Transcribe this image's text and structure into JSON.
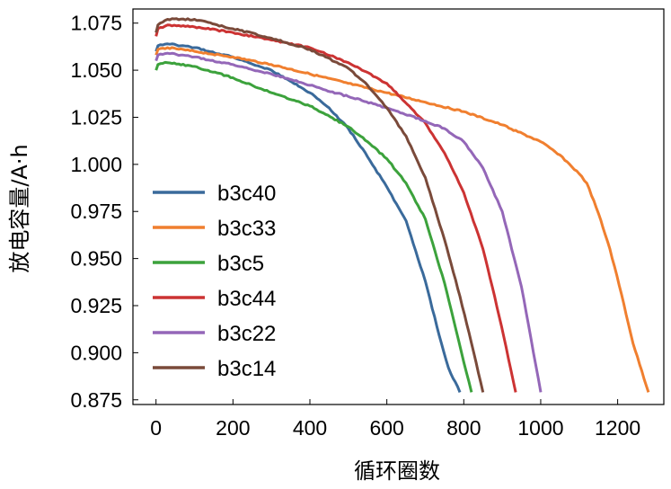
{
  "chart_data": {
    "type": "line",
    "xlabel": "循环圈数",
    "ylabel": "放电容量/A·h",
    "xlim": [
      -60,
      1320
    ],
    "ylim": [
      0.8725,
      1.0825
    ],
    "xticks": [
      0,
      200,
      400,
      600,
      800,
      1000,
      1200
    ],
    "xtick_labels": [
      "0",
      "200",
      "400",
      "600",
      "800",
      "1000",
      "1200"
    ],
    "yticks": [
      0.875,
      0.9,
      0.925,
      0.95,
      0.975,
      1.0,
      1.025,
      1.05,
      1.075
    ],
    "ytick_labels": [
      "0.875",
      "0.900",
      "0.925",
      "0.950",
      "0.975",
      "1.000",
      "1.025",
      "1.050",
      "1.075"
    ],
    "grid": false,
    "legend_position": "lower-left",
    "series": [
      {
        "name": "b3c40",
        "color": "#3a6a9b",
        "x": [
          0,
          5,
          30,
          100,
          200,
          300,
          400,
          450,
          500,
          550,
          600,
          650,
          700,
          730,
          760,
          790
        ],
        "y": [
          1.06,
          1.063,
          1.064,
          1.062,
          1.057,
          1.05,
          1.038,
          1.03,
          1.019,
          1.004,
          0.988,
          0.97,
          0.938,
          0.914,
          0.892,
          0.879
        ]
      },
      {
        "name": "b3c33",
        "color": "#f07f2f",
        "x": [
          0,
          5,
          30,
          100,
          200,
          300,
          400,
          500,
          600,
          700,
          800,
          900,
          1000,
          1050,
          1100,
          1120,
          1150,
          1180,
          1210,
          1240,
          1280
        ],
        "y": [
          1.058,
          1.061,
          1.062,
          1.06,
          1.057,
          1.053,
          1.048,
          1.043,
          1.038,
          1.033,
          1.028,
          1.021,
          1.012,
          1.005,
          0.995,
          0.99,
          0.974,
          0.955,
          0.931,
          0.905,
          0.879
        ]
      },
      {
        "name": "b3c5",
        "color": "#3ca23c",
        "x": [
          0,
          5,
          30,
          100,
          200,
          300,
          400,
          500,
          550,
          600,
          650,
          700,
          750,
          780,
          800,
          820
        ],
        "y": [
          1.05,
          1.053,
          1.054,
          1.052,
          1.046,
          1.038,
          1.031,
          1.02,
          1.012,
          1.003,
          0.99,
          0.971,
          0.937,
          0.912,
          0.895,
          0.879
        ]
      },
      {
        "name": "b3c44",
        "color": "#cc3333",
        "x": [
          0,
          5,
          30,
          100,
          200,
          300,
          400,
          500,
          600,
          700,
          750,
          800,
          850,
          880,
          910,
          935
        ],
        "y": [
          1.068,
          1.072,
          1.074,
          1.073,
          1.07,
          1.066,
          1.062,
          1.054,
          1.043,
          1.022,
          1.006,
          0.985,
          0.955,
          0.93,
          0.903,
          0.879
        ]
      },
      {
        "name": "b3c22",
        "color": "#9467b8",
        "x": [
          0,
          5,
          30,
          100,
          200,
          300,
          400,
          500,
          600,
          700,
          750,
          800,
          850,
          900,
          950,
          1000
        ],
        "y": [
          1.055,
          1.058,
          1.059,
          1.057,
          1.053,
          1.048,
          1.042,
          1.036,
          1.03,
          1.023,
          1.019,
          1.012,
          0.998,
          0.975,
          0.935,
          0.879
        ]
      },
      {
        "name": "b3c14",
        "color": "#7a4a3a",
        "x": [
          0,
          5,
          30,
          100,
          200,
          300,
          400,
          500,
          550,
          600,
          650,
          700,
          750,
          790,
          820,
          850
        ],
        "y": [
          1.07,
          1.074,
          1.077,
          1.077,
          1.072,
          1.067,
          1.061,
          1.051,
          1.042,
          1.03,
          1.015,
          0.993,
          0.96,
          0.93,
          0.905,
          0.879
        ]
      }
    ]
  }
}
